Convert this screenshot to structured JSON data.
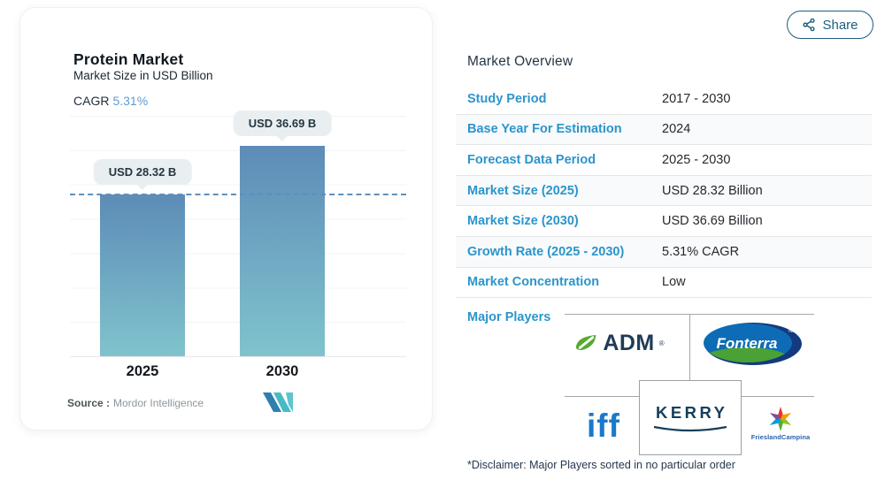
{
  "share_button": {
    "label": "Share"
  },
  "chart_card": {
    "title": "Protein Market",
    "subtitle": "Market Size in USD Billion",
    "cagr_label": "CAGR",
    "cagr_value": "5.31%",
    "source_label": "Source :",
    "source_value": "Mordor Intelligence"
  },
  "chart_data": {
    "type": "bar",
    "title": "Protein Market",
    "subtitle": "Market Size in USD Billion",
    "unit": "USD Billion",
    "categories": [
      "2025",
      "2030"
    ],
    "values": [
      28.32,
      36.69
    ],
    "bar_labels": [
      "USD 28.32 B",
      "USD 36.69 B"
    ],
    "cagr_pct": 5.31,
    "ylim": [
      0,
      42
    ],
    "grid": true,
    "legend": false,
    "reference_line_value": 28.32,
    "bar_gradient": [
      "#5d8cb7",
      "#80c3cd"
    ]
  },
  "overview": {
    "heading": "Market Overview",
    "rows": [
      {
        "label": "Study Period",
        "value": "2017 - 2030"
      },
      {
        "label": "Base Year For Estimation",
        "value": "2024"
      },
      {
        "label": "Forecast Data Period",
        "value": "2025 - 2030"
      },
      {
        "label": "Market Size (2025)",
        "value": "USD 28.32 Billion"
      },
      {
        "label": "Market Size (2030)",
        "value": "USD 36.69 Billion"
      },
      {
        "label": "Growth Rate (2025 - 2030)",
        "value": "5.31% CAGR"
      },
      {
        "label": "Market Concentration",
        "value": "Low"
      }
    ],
    "major_players_label": "Major Players",
    "major_players": [
      {
        "name": "ADM",
        "mark": "®"
      },
      {
        "name": "Fonterra",
        "mark": "™"
      },
      {
        "name": "iff"
      },
      {
        "name": "KERRY"
      },
      {
        "name": "FrieslandCampina"
      }
    ],
    "disclaimer": "*Disclaimer: Major Players sorted in no particular order"
  },
  "colors": {
    "accent_blue": "#2b95cb",
    "heading_navy": "#233547",
    "share": "#1d5d7b",
    "cagr_value": "#5e9cd3",
    "dashed_line": "#5e90ba",
    "tooltip_bg": "#e9eff1",
    "grid_line": "#f1f3f4",
    "connector_gray": "#a6a6a6"
  }
}
